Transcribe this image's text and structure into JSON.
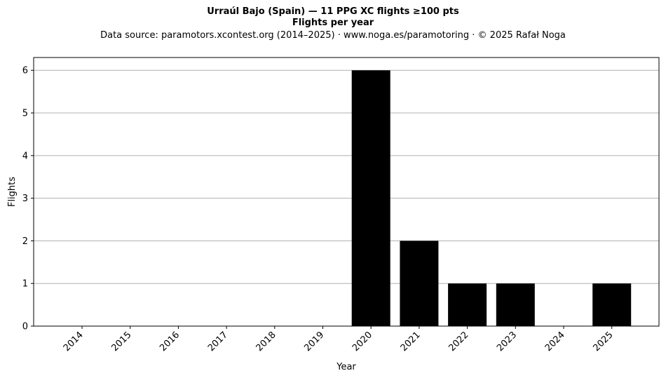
{
  "chart_data": {
    "type": "bar",
    "title": "Urraúl Bajo (Spain)  —  11 PPG XC flights ≥100 pts",
    "subtitle": "Flights per year",
    "source": "Data source: paramotors.xcontest.org (2014–2025)  ·  www.noga.es/paramotoring  ·  © 2025 Rafał Noga",
    "xlabel": "Year",
    "ylabel": "Flights",
    "categories": [
      "2014",
      "2015",
      "2016",
      "2017",
      "2018",
      "2019",
      "2020",
      "2021",
      "2022",
      "2023",
      "2024",
      "2025"
    ],
    "values": [
      0,
      0,
      0,
      0,
      0,
      0,
      6,
      2,
      1,
      1,
      0,
      1
    ],
    "ylim": [
      0,
      6.3
    ],
    "yticks": [
      "0",
      "1",
      "2",
      "3",
      "4",
      "5",
      "6"
    ],
    "grid": "horizontal",
    "bar_color": "#000000",
    "grid_color": "#b0b0b0"
  }
}
